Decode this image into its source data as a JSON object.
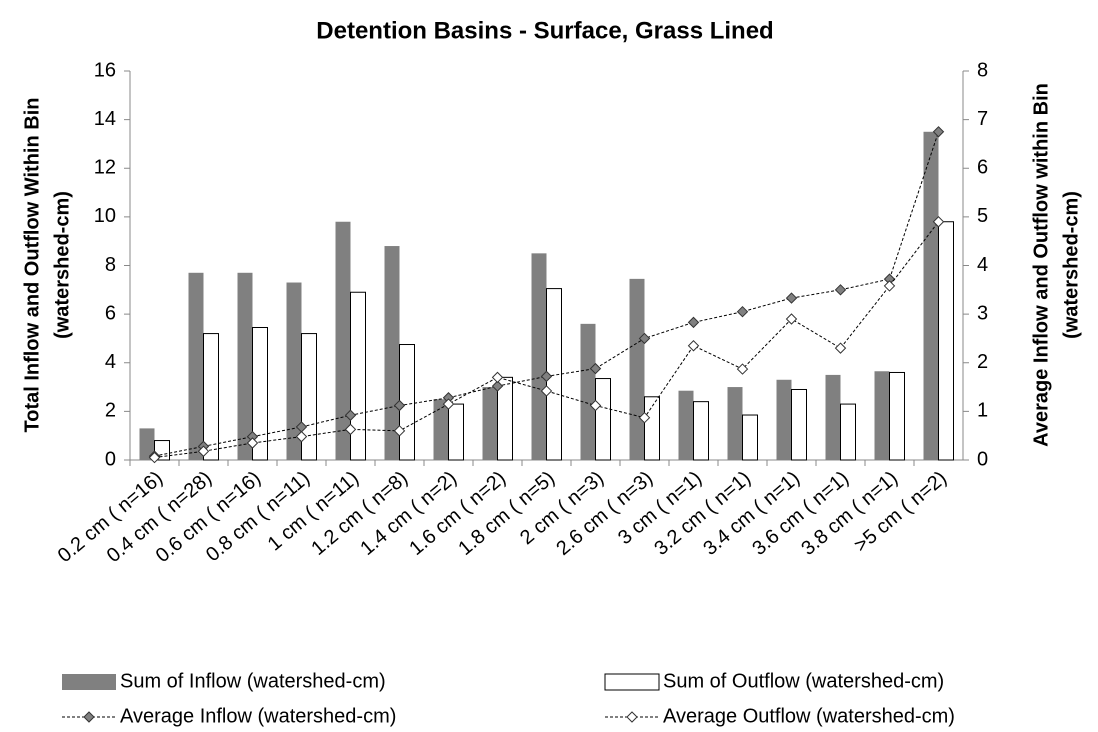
{
  "chart_data": {
    "type": "bar_line",
    "title": "Detention Basins - Surface, Grass Lined",
    "ylabel": [
      "Total Inflow and Outflow Within Bin",
      "(watershed-cm)"
    ],
    "y2label": [
      "Average Inflow and Outflow within Bin",
      "(watershed-cm)"
    ],
    "categories": [
      "0.2 cm ( n=16)",
      "0.4 cm ( n=28)",
      "0.6 cm ( n=16)",
      "0.8 cm ( n=11)",
      "1 cm ( n=11)",
      "1.2 cm ( n=8)",
      "1.4 cm ( n=2)",
      "1.6 cm ( n=2)",
      "1.8 cm ( n=5)",
      "2 cm ( n=3)",
      "2.6 cm ( n=3)",
      "3 cm ( n=1)",
      "3.2 cm ( n=1)",
      "3.4 cm ( n=1)",
      "3.6 cm ( n=1)",
      "3.8 cm ( n=1)",
      ">5 cm ( n=2)"
    ],
    "series": [
      {
        "name": "Sum of Inflow (watershed-cm)",
        "kind": "bar",
        "color": "#808080",
        "values": [
          1.3,
          7.7,
          7.7,
          7.3,
          9.8,
          8.8,
          2.5,
          3.0,
          8.5,
          5.6,
          7.45,
          2.85,
          3.0,
          3.3,
          3.5,
          3.65,
          13.5
        ]
      },
      {
        "name": "Sum of Outflow (watershed-cm)",
        "kind": "bar",
        "color": "#ffffff",
        "values": [
          0.8,
          5.2,
          5.45,
          5.2,
          6.9,
          4.75,
          2.3,
          3.4,
          7.05,
          3.35,
          2.6,
          2.4,
          1.85,
          2.9,
          2.3,
          3.6,
          9.8
        ]
      },
      {
        "name": "Average Inflow (watershed-cm)",
        "kind": "line",
        "axis": "y2",
        "color": "#808080",
        "values": [
          0.08,
          0.28,
          0.48,
          0.68,
          0.92,
          1.12,
          1.28,
          1.52,
          1.72,
          1.88,
          2.5,
          2.83,
          3.05,
          3.33,
          3.5,
          3.72,
          6.75
        ]
      },
      {
        "name": "Average Outflow (watershed-cm)",
        "kind": "line",
        "axis": "y2",
        "color": "#ffffff",
        "values": [
          0.05,
          0.18,
          0.35,
          0.48,
          0.63,
          0.6,
          1.15,
          1.7,
          1.42,
          1.12,
          0.87,
          2.35,
          1.87,
          2.9,
          2.3,
          3.58,
          4.9
        ]
      }
    ],
    "ylim": [
      0,
      16
    ],
    "yticks": [
      0,
      2,
      4,
      6,
      8,
      10,
      12,
      14,
      16
    ],
    "y2lim": [
      0,
      8
    ],
    "y2ticks": [
      0,
      1,
      2,
      3,
      4,
      5,
      6,
      7,
      8
    ],
    "grid": false,
    "legend": "bottom"
  }
}
